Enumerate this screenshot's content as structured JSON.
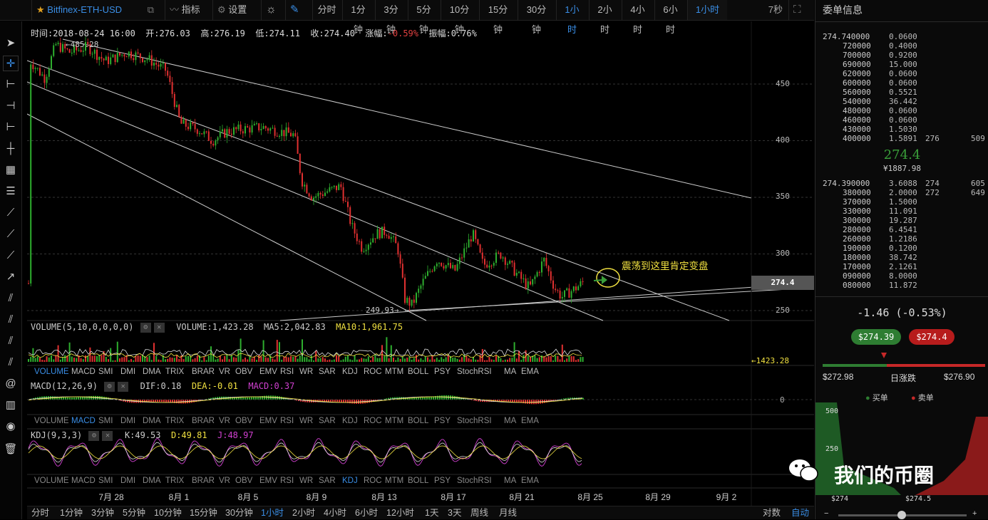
{
  "topbar": {
    "symbol": "Bitfinex-ETH-USD",
    "indicator_label": "指标",
    "settings_label": "设置",
    "intervals": [
      "分时",
      "1分钟",
      "3分钟",
      "5分钟",
      "10分钟",
      "15分钟",
      "30分钟",
      "1小时",
      "2小时",
      "4小时",
      "6小时",
      "1小时"
    ],
    "active_interval": "1小时",
    "refresh": "7秒"
  },
  "info_line": {
    "time_label": "时间:2018-08-24 16:00",
    "open": "开:276.03",
    "high": "高:276.19",
    "low": "低:274.11",
    "close": "收:274.40",
    "change_label": "涨幅:",
    "change_value": "-0.59%",
    "amplitude_label": "振幅:",
    "amplitude_value": "0.76%"
  },
  "main_chart": {
    "y_ticks": [
      "450",
      "400",
      "350",
      "300",
      "250"
    ],
    "high_marker": "485.28",
    "low_marker": "249.93",
    "current_price": "274.4",
    "annotation": "震荡到这里肯定变盘",
    "x_ticks": [
      "7月 28",
      "8月 1",
      "8月 5",
      "8月 9",
      "8月 13",
      "8月 17",
      "8月 21",
      "8月 25",
      "8月 29",
      "9月 2"
    ]
  },
  "volume": {
    "head": "VOLUME(5,10,0,0,0,0)",
    "volume": "VOLUME:1,423.28",
    "ma5": "MA5:2,042.83",
    "ma10": "MA10:1,961.75",
    "marker": "←1423.28"
  },
  "indicator_tabs": [
    "VOLUME",
    "MACD",
    "SMI",
    "DMI",
    "DMA",
    "TRIX",
    "BRAR",
    "VR",
    "OBV",
    "EMV",
    "RSI",
    "WR",
    "SAR",
    "KDJ",
    "ROC",
    "MTM",
    "BOLL",
    "PSY",
    "StochRSI",
    "MA",
    "EMA"
  ],
  "macd": {
    "head": "MACD(12,26,9)",
    "dif": "DIF:0.18",
    "dea": "DEA:-0.01",
    "macd": "MACD:0.37",
    "zero": "0"
  },
  "kdj": {
    "head": "KDJ(9,3,3)",
    "k": "K:49.53",
    "d": "D:49.81",
    "j": "J:48.97"
  },
  "bottombar": {
    "intervals": [
      "分时",
      "1分钟",
      "3分钟",
      "5分钟",
      "10分钟",
      "15分钟",
      "30分钟",
      "1小时",
      "2小时",
      "4小时",
      "6小时",
      "12小时",
      "1天",
      "3天",
      "周线",
      "月线"
    ],
    "active": "1小时",
    "log_label": "对数",
    "auto_label": "自动"
  },
  "orderbook": {
    "title": "委单信息",
    "asks": [
      {
        "p": "274.740000",
        "a": "0.0600",
        "x": "",
        "y": ""
      },
      {
        "p": "720000",
        "a": "0.4000",
        "x": "",
        "y": ""
      },
      {
        "p": "700000",
        "a": "0.9200",
        "x": "",
        "y": ""
      },
      {
        "p": "690000",
        "a": "15.000",
        "x": "",
        "y": ""
      },
      {
        "p": "620000",
        "a": "0.0600",
        "x": "",
        "y": ""
      },
      {
        "p": "600000",
        "a": "0.0600",
        "x": "",
        "y": ""
      },
      {
        "p": "560000",
        "a": "0.5521",
        "x": "",
        "y": ""
      },
      {
        "p": "540000",
        "a": "36.442",
        "x": "",
        "y": ""
      },
      {
        "p": "480000",
        "a": "0.0600",
        "x": "",
        "y": ""
      },
      {
        "p": "460000",
        "a": "0.0600",
        "x": "",
        "y": ""
      },
      {
        "p": "430000",
        "a": "1.5030",
        "x": "",
        "y": ""
      },
      {
        "p": "400000",
        "a": "1.5891",
        "x": "276",
        "y": "509"
      }
    ],
    "last_price": "274.4",
    "last_cny": "¥1887.98",
    "bids": [
      {
        "p": "274.390000",
        "a": "3.6088",
        "x": "274",
        "y": "605"
      },
      {
        "p": "380000",
        "a": "2.0000",
        "x": "272",
        "y": "649"
      },
      {
        "p": "370000",
        "a": "1.5000",
        "x": "",
        "y": ""
      },
      {
        "p": "330000",
        "a": "11.091",
        "x": "",
        "y": ""
      },
      {
        "p": "300000",
        "a": "19.287",
        "x": "",
        "y": ""
      },
      {
        "p": "280000",
        "a": "6.4541",
        "x": "",
        "y": ""
      },
      {
        "p": "260000",
        "a": "1.2186",
        "x": "",
        "y": ""
      },
      {
        "p": "190000",
        "a": "0.1200",
        "x": "",
        "y": ""
      },
      {
        "p": "180000",
        "a": "38.742",
        "x": "",
        "y": ""
      },
      {
        "p": "170000",
        "a": "2.1261",
        "x": "",
        "y": ""
      },
      {
        "p": "090000",
        "a": "8.0000",
        "x": "",
        "y": ""
      },
      {
        "p": "080000",
        "a": "11.872",
        "x": "",
        "y": ""
      }
    ],
    "change": "-1.46 (-0.53%)",
    "bid_btn": "$274.39",
    "ask_btn": "$274.4",
    "day_low": "$272.98",
    "day_label": "日涨跌",
    "day_high": "$276.90",
    "legend_buy": "买单",
    "legend_sell": "卖单",
    "depth_y": [
      "500",
      "250"
    ],
    "depth_x": [
      "$274",
      "$274.5"
    ],
    "colors": {
      "buy": "#2e7d32",
      "sell": "#c62828"
    }
  },
  "watermark": "我们的币圈"
}
